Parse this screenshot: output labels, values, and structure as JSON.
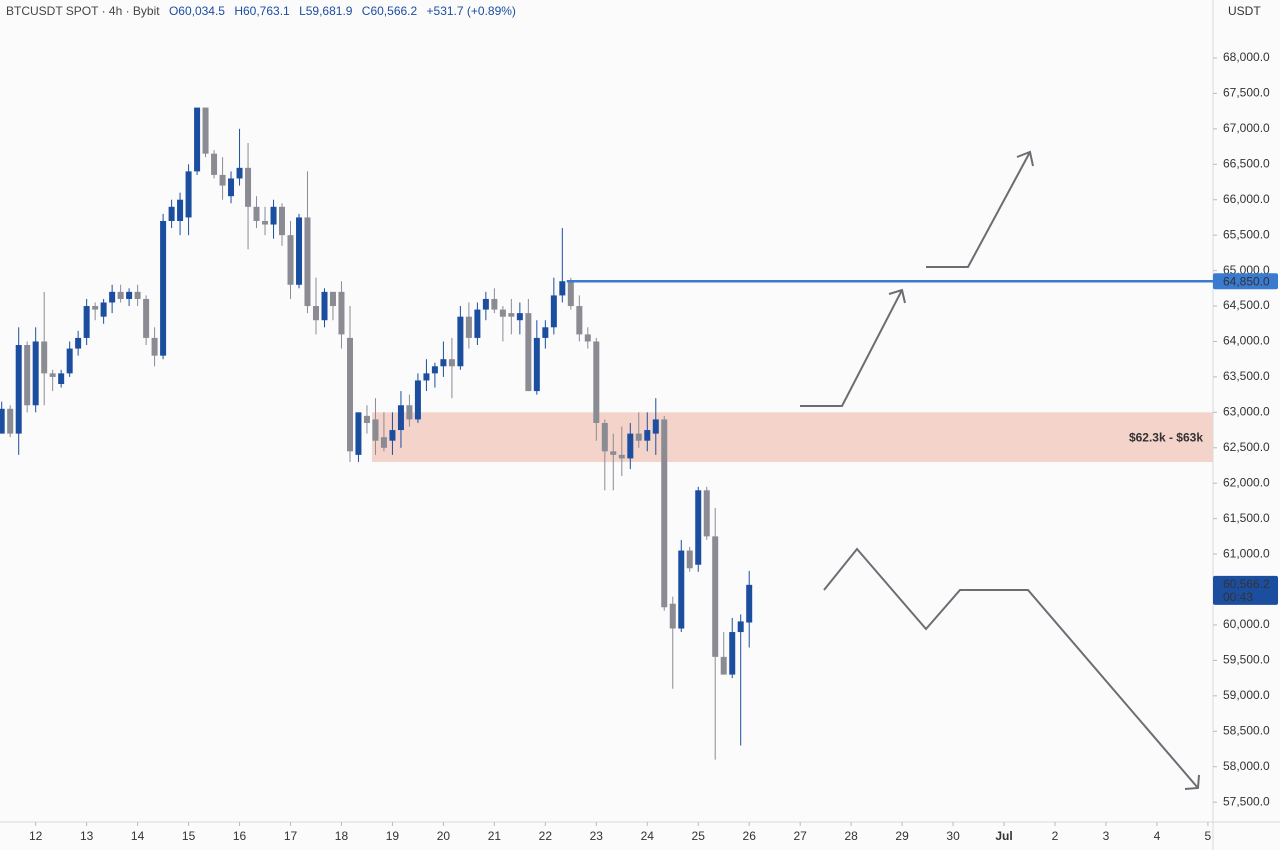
{
  "chart_data": {
    "type": "candlestick",
    "symbol": "BTCUSDT SPOT · 4h · Bybit",
    "ohlc_labels": [
      "O60,034.5",
      "H60,763.1",
      "L59,681.9",
      "C60,566.2"
    ],
    "change": "+531.7 (+0.89%)",
    "axis_unit": "USDT",
    "up_color": "#1c4ea0",
    "down_color": "#8b8b93",
    "x": [
      11.333,
      11.5,
      11.667,
      11.833,
      12,
      12.167,
      12.333,
      12.5,
      12.667,
      12.833,
      13,
      13.167,
      13.333,
      13.5,
      13.667,
      13.833,
      14,
      14.167,
      14.333,
      14.5,
      14.667,
      14.833,
      15,
      15.167,
      15.333,
      15.5,
      15.667,
      15.833,
      16,
      16.167,
      16.333,
      16.5,
      16.667,
      16.833,
      17,
      17.167,
      17.333,
      17.5,
      17.667,
      17.833,
      18,
      18.167,
      18.333,
      18.5,
      18.667,
      18.833,
      19,
      19.167,
      19.333,
      19.5,
      19.667,
      19.833,
      20,
      20.167,
      20.333,
      20.5,
      20.667,
      20.833,
      21,
      21.167,
      21.333,
      21.5,
      21.667,
      21.833,
      22,
      22.167,
      22.333,
      22.5,
      22.667,
      22.833,
      23,
      23.167,
      23.333,
      23.5,
      23.667,
      23.833,
      24,
      24.167,
      24.333,
      24.5,
      24.667,
      24.833,
      25,
      25.167,
      25.333,
      25.5,
      25.667,
      25.833,
      26
    ],
    "open": [
      62700,
      63050,
      62700,
      63950,
      63100,
      64000,
      63550,
      63400,
      63550,
      63900,
      64050,
      64500,
      64350,
      64550,
      64700,
      64600,
      64700,
      64600,
      64050,
      63800,
      65700,
      65700,
      65750,
      66400,
      67300,
      66650,
      66350,
      66050,
      66300,
      66450,
      65900,
      65700,
      65650,
      65900,
      65500,
      64800,
      65750,
      64500,
      64300,
      64700,
      64700,
      64050,
      62400,
      62950,
      62900,
      62650,
      62600,
      62750,
      63100,
      62900,
      63450,
      63550,
      63650,
      63750,
      63650,
      64350,
      64050,
      64450,
      64600,
      64450,
      64400,
      64300,
      64400,
      63300,
      64050,
      64200,
      64650,
      64850,
      64500,
      64100,
      64000,
      62850,
      62450,
      62400,
      62350,
      62700,
      62600,
      62700,
      62900,
      60300,
      59950,
      61050,
      60850,
      61900,
      61250,
      59550,
      59300,
      59900,
      60034.5
    ],
    "high": [
      63150,
      63100,
      64200,
      64000,
      64200,
      64700,
      63600,
      63600,
      64000,
      64150,
      64600,
      64550,
      64600,
      64800,
      64800,
      64750,
      64800,
      64650,
      64200,
      65800,
      66000,
      66100,
      66500,
      67300,
      67300,
      66700,
      66600,
      66400,
      67000,
      66800,
      66050,
      65900,
      66000,
      65950,
      65700,
      65800,
      66400,
      64900,
      64750,
      64700,
      64850,
      64500,
      63000,
      63100,
      63200,
      63000,
      63000,
      63300,
      63250,
      63550,
      63750,
      63700,
      64000,
      64050,
      64500,
      64550,
      64550,
      64700,
      64750,
      64500,
      64600,
      64550,
      64600,
      64300,
      64300,
      64900,
      65600,
      64900,
      64650,
      64200,
      64050,
      62900,
      62700,
      62800,
      62850,
      63000,
      63000,
      63200,
      62950,
      60400,
      61200,
      61100,
      61950,
      61950,
      61650,
      59900,
      60100,
      60150,
      60763.1
    ],
    "low": [
      62700,
      62650,
      62400,
      63000,
      63000,
      63100,
      63300,
      63350,
      63500,
      63800,
      63950,
      64300,
      64250,
      64400,
      64550,
      64500,
      64500,
      63950,
      63650,
      63750,
      65600,
      65500,
      65500,
      66350,
      66600,
      66300,
      66000,
      65950,
      66200,
      65300,
      65600,
      65500,
      65450,
      65350,
      64600,
      64750,
      64400,
      64100,
      64200,
      64300,
      63900,
      62300,
      62300,
      62700,
      62400,
      62450,
      62400,
      62500,
      62800,
      62850,
      63300,
      63350,
      63500,
      63200,
      63600,
      63900,
      63950,
      64300,
      64400,
      64000,
      64100,
      64100,
      63300,
      63250,
      63900,
      64100,
      64550,
      64450,
      64000,
      63900,
      62600,
      61900,
      61900,
      62100,
      62200,
      62500,
      62450,
      62400,
      60200,
      59100,
      59900,
      60750,
      60750,
      61200,
      58100,
      59300,
      59250,
      58300,
      59681.9
    ],
    "close": [
      63050,
      62700,
      63950,
      63100,
      64000,
      63550,
      63500,
      63550,
      63900,
      64050,
      64500,
      64450,
      64550,
      64700,
      64600,
      64700,
      64600,
      64050,
      63800,
      65700,
      65900,
      66000,
      66400,
      67300,
      66650,
      66350,
      66200,
      66300,
      66450,
      65900,
      65700,
      65650,
      65900,
      65500,
      64800,
      65750,
      64500,
      64300,
      64700,
      64500,
      64100,
      62450,
      63000,
      62850,
      62600,
      62500,
      62750,
      63100,
      62900,
      63450,
      63550,
      63650,
      63750,
      63650,
      64350,
      64050,
      64450,
      64600,
      64450,
      64350,
      64350,
      64400,
      63300,
      64050,
      64200,
      64650,
      64850,
      64500,
      64100,
      64000,
      62850,
      62450,
      62400,
      62350,
      62700,
      62600,
      62750,
      62900,
      60250,
      59950,
      61050,
      60800,
      61900,
      61250,
      59550,
      59300,
      59900,
      60050,
      60566.2
    ],
    "last_price_label": "60,566.2",
    "countdown": "00:43",
    "xlim": [
      11.3,
      35.1
    ],
    "xticks": [
      12,
      13,
      14,
      15,
      16,
      17,
      18,
      19,
      20,
      21,
      22,
      23,
      24,
      25,
      26,
      27,
      28,
      29,
      30,
      {
        "value": 31,
        "label": "Jul"
      },
      {
        "value": 32,
        "label": "2"
      },
      {
        "value": 33,
        "label": "3"
      },
      {
        "value": 34,
        "label": "4"
      },
      {
        "value": 35,
        "label": "5"
      }
    ],
    "ylim": [
      57220,
      68818
    ],
    "yticks": [
      {
        "value": 68000,
        "label": "68,000.0"
      },
      {
        "value": 67500,
        "label": "67,500.0"
      },
      {
        "value": 67000,
        "label": "67,000.0"
      },
      {
        "value": 66500,
        "label": "66,500.0"
      },
      {
        "value": 66000,
        "label": "66,000.0"
      },
      {
        "value": 65500,
        "label": "65,500.0"
      },
      {
        "value": 65000,
        "label": "65,000.0"
      },
      {
        "value": 64500,
        "label": "64,500.0"
      },
      {
        "value": 64000,
        "label": "64,000.0"
      },
      {
        "value": 63500,
        "label": "63,500.0"
      },
      {
        "value": 63000,
        "label": "63,000.0"
      },
      {
        "value": 62500,
        "label": "62,500.0"
      },
      {
        "value": 62000,
        "label": "62,000.0"
      },
      {
        "value": 61500,
        "label": "61,500.0"
      },
      {
        "value": 61000,
        "label": "61,000.0"
      },
      {
        "value": 60500,
        "label": "60,500.0"
      },
      {
        "value": 60000,
        "label": "60,000.0"
      },
      {
        "value": 59500,
        "label": "59,500.0"
      },
      {
        "value": 59000,
        "label": "59,000.0"
      },
      {
        "value": 58500,
        "label": "58,500.0"
      },
      {
        "value": 58000,
        "label": "58,000.0"
      },
      {
        "value": 57500,
        "label": "57,500.0"
      }
    ],
    "zone": {
      "label": "$62.3k - $63k",
      "low": 62300,
      "high": 63000,
      "x_start": 18.6,
      "color": "#f4d3cb",
      "label_color": "#d9553f"
    },
    "level": {
      "value": 64850,
      "label": "64,850.0",
      "x_start": 22.42,
      "color": "#3a7bd0"
    },
    "grid": false
  }
}
